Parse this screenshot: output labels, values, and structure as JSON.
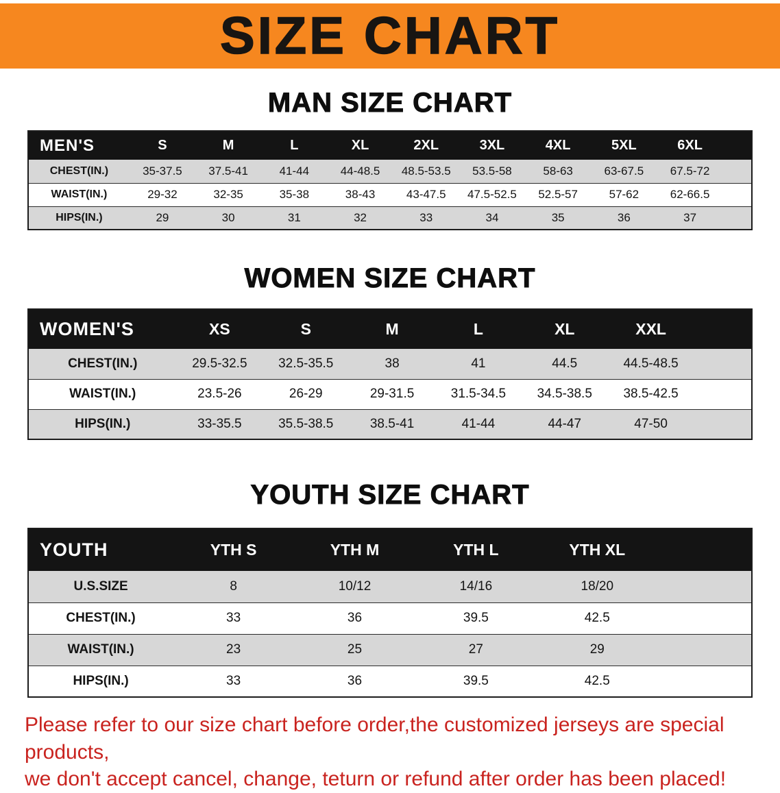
{
  "colors": {
    "banner_orange": "#f6871f",
    "header_black": "#141414",
    "row_gray": "#d7d7d7",
    "disclaimer_red": "#c9231f",
    "text_black": "#111111"
  },
  "banner": {
    "title": "SIZE CHART"
  },
  "sections": [
    {
      "id": "men",
      "heading": "MAN SIZE CHART",
      "table": {
        "header": [
          "MEN'S",
          "S",
          "M",
          "L",
          "XL",
          "2XL",
          "3XL",
          "4XL",
          "5XL",
          "6XL"
        ],
        "rows": [
          [
            "CHEST(IN.)",
            "35-37.5",
            "37.5-41",
            "41-44",
            "44-48.5",
            "48.5-53.5",
            "53.5-58",
            "58-63",
            "63-67.5",
            "67.5-72"
          ],
          [
            "WAIST(IN.)",
            "29-32",
            "32-35",
            "35-38",
            "38-43",
            "43-47.5",
            "47.5-52.5",
            "52.5-57",
            "57-62",
            "62-66.5"
          ],
          [
            "HIPS(IN.)",
            "29",
            "30",
            "31",
            "32",
            "33",
            "34",
            "35",
            "36",
            "37"
          ]
        ]
      }
    },
    {
      "id": "women",
      "heading": "WOMEN SIZE CHART",
      "table": {
        "header": [
          "WOMEN'S",
          "XS",
          "S",
          "M",
          "L",
          "XL",
          "XXL"
        ],
        "rows": [
          [
            "CHEST(IN.)",
            "29.5-32.5",
            "32.5-35.5",
            "38",
            "41",
            "44.5",
            "44.5-48.5"
          ],
          [
            "WAIST(IN.)",
            "23.5-26",
            "26-29",
            "29-31.5",
            "31.5-34.5",
            "34.5-38.5",
            "38.5-42.5"
          ],
          [
            "HIPS(IN.)",
            "33-35.5",
            "35.5-38.5",
            "38.5-41",
            "41-44",
            "44-47",
            "47-50"
          ]
        ]
      }
    },
    {
      "id": "youth",
      "heading": "YOUTH SIZE CHART",
      "table": {
        "header": [
          "YOUTH",
          "YTH S",
          "YTH M",
          "YTH L",
          "YTH XL"
        ],
        "rows": [
          [
            "U.S.SIZE",
            "8",
            "10/12",
            "14/16",
            "18/20"
          ],
          [
            "CHEST(IN.)",
            "33",
            "36",
            "39.5",
            "42.5"
          ],
          [
            "WAIST(IN.)",
            "23",
            "25",
            "27",
            "29"
          ],
          [
            "HIPS(IN.)",
            "33",
            "36",
            "39.5",
            "42.5"
          ]
        ]
      }
    }
  ],
  "disclaimer": {
    "line1": "Please refer to our size chart before order,the customized jerseys are special products,",
    "line2": "we don't accept cancel, change, teturn or refund after order has been placed!"
  }
}
